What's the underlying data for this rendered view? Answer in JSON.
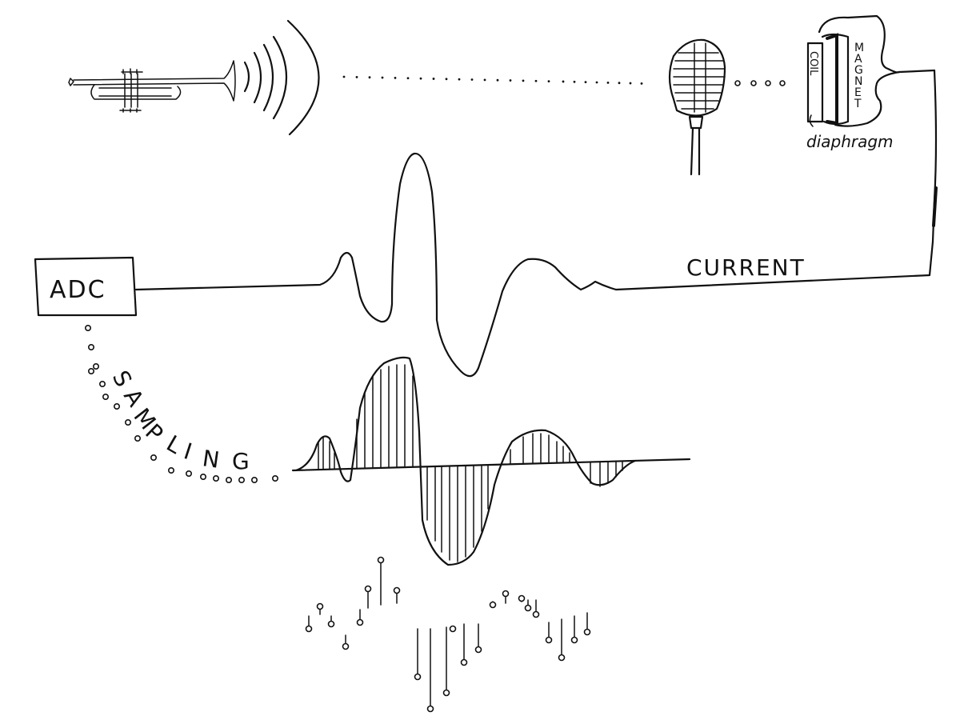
{
  "labels": {
    "magnet": "MAGNET",
    "coil": "COIL",
    "diaphragm": "diaphragm",
    "current": "CURRENT",
    "adc": "ADC",
    "sampling": "SAMPLING"
  },
  "icons": {
    "source": "trumpet-icon",
    "transducer": "microphone-icon",
    "waves": "sound-waves-icon"
  },
  "colors": {
    "ink": "#111111",
    "paper": "#ffffff"
  }
}
